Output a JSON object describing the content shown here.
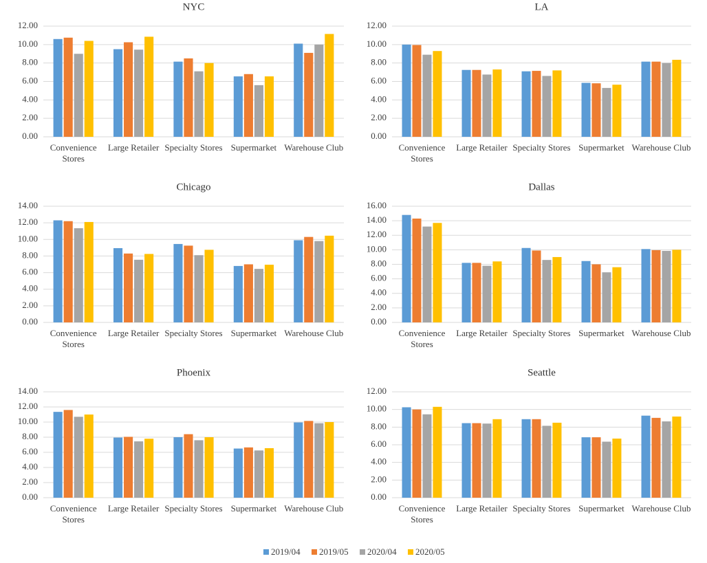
{
  "chart_data": [
    {
      "type": "bar",
      "title": "NYC",
      "categories": [
        "Convenience Stores",
        "Large Retailer",
        "Specialty Stores",
        "Supermarket",
        "Warehouse Club"
      ],
      "series": [
        {
          "name": "2019/04",
          "color": "#5b9bd5",
          "values": [
            10.6,
            9.5,
            8.15,
            6.55,
            10.1
          ]
        },
        {
          "name": "2019/05",
          "color": "#ed7d31",
          "values": [
            10.75,
            10.25,
            8.5,
            6.8,
            9.1
          ]
        },
        {
          "name": "2020/04",
          "color": "#a5a5a5",
          "values": [
            9.0,
            9.45,
            7.1,
            5.6,
            10.0
          ]
        },
        {
          "name": "2020/05",
          "color": "#ffc000",
          "values": [
            10.4,
            10.85,
            8.0,
            6.55,
            11.15
          ]
        }
      ],
      "ylim": [
        0,
        12
      ],
      "yticks": [
        {
          "value": 0,
          "label": "0.00"
        },
        {
          "value": 2,
          "label": "2.00"
        },
        {
          "value": 4,
          "label": "4.00"
        },
        {
          "value": 6,
          "label": "6.00"
        },
        {
          "value": 8,
          "label": "8.00"
        },
        {
          "value": 10,
          "label": "10.00"
        },
        {
          "value": 12,
          "label": "12.00"
        }
      ],
      "grid": true
    },
    {
      "type": "bar",
      "title": "LA",
      "categories": [
        "Convenience Stores",
        "Large Retailer",
        "Specialty Stores",
        "Supermarket",
        "Warehouse Club"
      ],
      "series": [
        {
          "name": "2019/04",
          "color": "#5b9bd5",
          "values": [
            10.0,
            7.25,
            7.1,
            5.85,
            8.15
          ]
        },
        {
          "name": "2019/05",
          "color": "#ed7d31",
          "values": [
            9.95,
            7.25,
            7.15,
            5.8,
            8.15
          ]
        },
        {
          "name": "2020/04",
          "color": "#a5a5a5",
          "values": [
            8.9,
            6.75,
            6.6,
            5.3,
            8.0
          ]
        },
        {
          "name": "2020/05",
          "color": "#ffc000",
          "values": [
            9.3,
            7.3,
            7.2,
            5.65,
            8.35
          ]
        }
      ],
      "ylim": [
        0,
        12
      ],
      "yticks": [
        {
          "value": 0,
          "label": "0.00"
        },
        {
          "value": 2,
          "label": "2.00"
        },
        {
          "value": 4,
          "label": "4.00"
        },
        {
          "value": 6,
          "label": "6.00"
        },
        {
          "value": 8,
          "label": "8.00"
        },
        {
          "value": 10,
          "label": "10.00"
        },
        {
          "value": 12,
          "label": "12.00"
        }
      ],
      "grid": true
    },
    {
      "type": "bar",
      "title": "Chicago",
      "categories": [
        "Convenience Stores",
        "Large Retailer",
        "Specialty Stores",
        "Supermarket",
        "Warehouse Club"
      ],
      "series": [
        {
          "name": "2019/04",
          "color": "#5b9bd5",
          "values": [
            12.3,
            8.95,
            9.45,
            6.8,
            9.9
          ]
        },
        {
          "name": "2019/05",
          "color": "#ed7d31",
          "values": [
            12.2,
            8.3,
            9.25,
            7.0,
            10.3
          ]
        },
        {
          "name": "2020/04",
          "color": "#a5a5a5",
          "values": [
            11.35,
            7.55,
            8.1,
            6.45,
            9.8
          ]
        },
        {
          "name": "2020/05",
          "color": "#ffc000",
          "values": [
            12.1,
            8.25,
            8.75,
            6.95,
            10.45
          ]
        }
      ],
      "ylim": [
        0,
        14
      ],
      "yticks": [
        {
          "value": 0,
          "label": "0.00"
        },
        {
          "value": 2,
          "label": "2.00"
        },
        {
          "value": 4,
          "label": "4.00"
        },
        {
          "value": 6,
          "label": "6.00"
        },
        {
          "value": 8,
          "label": "8.00"
        },
        {
          "value": 10,
          "label": "10.00"
        },
        {
          "value": 12,
          "label": "12.00"
        },
        {
          "value": 14,
          "label": "14.00"
        }
      ],
      "grid": true
    },
    {
      "type": "bar",
      "title": "Dallas",
      "categories": [
        "Convenience Stores",
        "Large Retailer",
        "Specialty Stores",
        "Supermarket",
        "Warehouse Club"
      ],
      "series": [
        {
          "name": "2019/04",
          "color": "#5b9bd5",
          "values": [
            14.8,
            8.2,
            10.25,
            8.45,
            10.1
          ]
        },
        {
          "name": "2019/05",
          "color": "#ed7d31",
          "values": [
            14.3,
            8.2,
            9.9,
            8.0,
            9.95
          ]
        },
        {
          "name": "2020/04",
          "color": "#a5a5a5",
          "values": [
            13.2,
            7.8,
            8.6,
            6.9,
            9.85
          ]
        },
        {
          "name": "2020/05",
          "color": "#ffc000",
          "values": [
            13.7,
            8.4,
            9.0,
            7.6,
            10.0
          ]
        }
      ],
      "ylim": [
        0,
        16
      ],
      "yticks": [
        {
          "value": 0,
          "label": "0.00"
        },
        {
          "value": 2,
          "label": "2.00"
        },
        {
          "value": 4,
          "label": "4.00"
        },
        {
          "value": 6,
          "label": "6.00"
        },
        {
          "value": 8,
          "label": "8.00"
        },
        {
          "value": 10,
          "label": "10.00"
        },
        {
          "value": 12,
          "label": "12.00"
        },
        {
          "value": 14,
          "label": "14.00"
        },
        {
          "value": 16,
          "label": "16.00"
        }
      ],
      "grid": true
    },
    {
      "type": "bar",
      "title": "Phoenix",
      "categories": [
        "Convenience Stores",
        "Large Retailer",
        "Specialty Stores",
        "Supermarket",
        "Warehouse Club"
      ],
      "series": [
        {
          "name": "2019/04",
          "color": "#5b9bd5",
          "values": [
            11.35,
            7.95,
            8.0,
            6.5,
            9.95
          ]
        },
        {
          "name": "2019/05",
          "color": "#ed7d31",
          "values": [
            11.6,
            8.05,
            8.4,
            6.65,
            10.15
          ]
        },
        {
          "name": "2020/04",
          "color": "#a5a5a5",
          "values": [
            10.7,
            7.45,
            7.6,
            6.25,
            9.85
          ]
        },
        {
          "name": "2020/05",
          "color": "#ffc000",
          "values": [
            11.0,
            7.8,
            8.0,
            6.55,
            10.0
          ]
        }
      ],
      "ylim": [
        0,
        14
      ],
      "yticks": [
        {
          "value": 0,
          "label": "0.00"
        },
        {
          "value": 2,
          "label": "2.00"
        },
        {
          "value": 4,
          "label": "4.00"
        },
        {
          "value": 6,
          "label": "6.00"
        },
        {
          "value": 8,
          "label": "8.00"
        },
        {
          "value": 10,
          "label": "10.00"
        },
        {
          "value": 12,
          "label": "12.00"
        },
        {
          "value": 14,
          "label": "14.00"
        }
      ],
      "grid": true
    },
    {
      "type": "bar",
      "title": "Seattle",
      "categories": [
        "Convenience Stores",
        "Large Retailer",
        "Specialty Stores",
        "Supermarket",
        "Warehouse Club"
      ],
      "series": [
        {
          "name": "2019/04",
          "color": "#5b9bd5",
          "values": [
            10.25,
            8.45,
            8.9,
            6.85,
            9.3
          ]
        },
        {
          "name": "2019/05",
          "color": "#ed7d31",
          "values": [
            10.0,
            8.45,
            8.9,
            6.85,
            9.05
          ]
        },
        {
          "name": "2020/04",
          "color": "#a5a5a5",
          "values": [
            9.45,
            8.4,
            8.15,
            6.35,
            8.65
          ]
        },
        {
          "name": "2020/05",
          "color": "#ffc000",
          "values": [
            10.3,
            8.9,
            8.5,
            6.7,
            9.2
          ]
        }
      ],
      "ylim": [
        0,
        12
      ],
      "yticks": [
        {
          "value": 0,
          "label": "0.00"
        },
        {
          "value": 2,
          "label": "2.00"
        },
        {
          "value": 4,
          "label": "4.00"
        },
        {
          "value": 6,
          "label": "6.00"
        },
        {
          "value": 8,
          "label": "8.00"
        },
        {
          "value": 10,
          "label": "10.00"
        },
        {
          "value": 12,
          "label": "12.00"
        }
      ],
      "grid": true
    }
  ]
}
